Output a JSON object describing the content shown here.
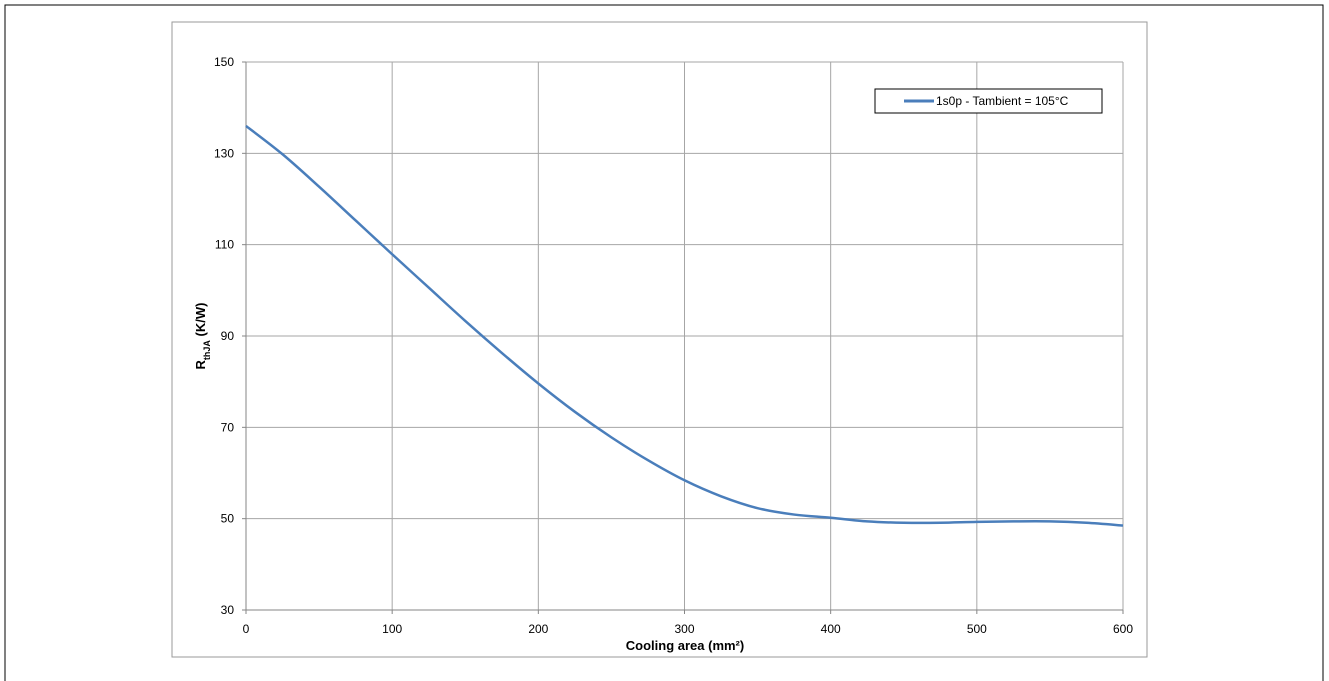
{
  "chart_data": {
    "type": "line",
    "title": "",
    "xlabel": "Cooling area (mm²)",
    "ylabel": {
      "main": "R",
      "subscript": "thJA",
      "suffix": " (K/W)"
    },
    "xlim": [
      0,
      600
    ],
    "ylim": [
      30,
      150
    ],
    "x_ticks": [
      0,
      100,
      200,
      300,
      400,
      500,
      600
    ],
    "y_ticks": [
      30,
      50,
      70,
      90,
      110,
      130,
      150
    ],
    "grid": true,
    "legend_position": "top-right",
    "series": [
      {
        "name": "1s0p - Tambient = 105°C",
        "color": "#4a7ebb",
        "x": [
          0,
          25,
          50,
          75,
          100,
          125,
          150,
          175,
          200,
          225,
          250,
          275,
          300,
          325,
          350,
          375,
          400,
          425,
          450,
          475,
          500,
          525,
          550,
          575,
          600
        ],
        "y": [
          136,
          129.8,
          122.7,
          115.3,
          107.9,
          100.6,
          93.3,
          86.3,
          79.6,
          73.4,
          67.8,
          62.8,
          58.4,
          54.9,
          52.3,
          50.9,
          50.2,
          49.4,
          49.1,
          49.1,
          49.3,
          49.4,
          49.4,
          49.1,
          48.5
        ]
      }
    ]
  }
}
